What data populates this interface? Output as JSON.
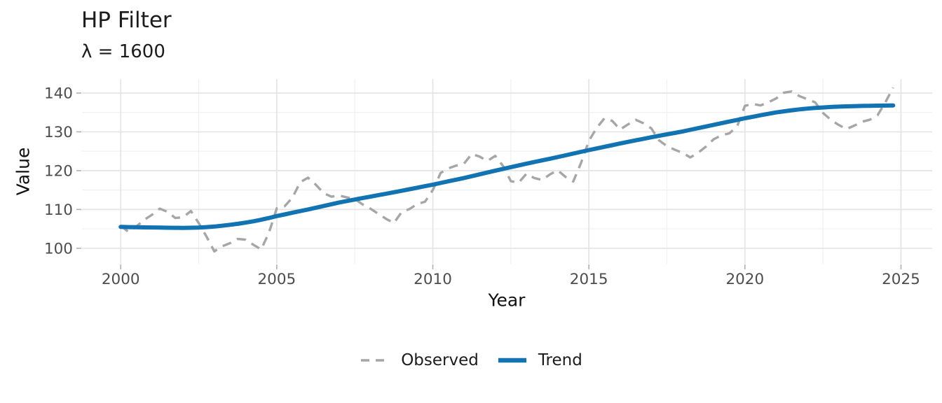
{
  "chart_data": {
    "type": "line",
    "title": "HP Filter",
    "subtitle": "λ = 1600",
    "xlabel": "Year",
    "ylabel": "Value",
    "grid": true,
    "legend_position": "bottom",
    "x_domain": [
      1998.76,
      2026.0
    ],
    "y_domain": [
      96.0,
      143.6
    ],
    "x_ticks": [
      2000,
      2005,
      2010,
      2015,
      2020,
      2025
    ],
    "x_minor_ticks": [
      2002.5,
      2007.5,
      2012.5,
      2017.5,
      2022.5
    ],
    "y_ticks": [
      100,
      110,
      120,
      130,
      140
    ],
    "y_minor_ticks": [
      105,
      115,
      125,
      135
    ],
    "x": [
      2000.0,
      2000.25,
      2000.5,
      2000.75,
      2001.0,
      2001.25,
      2001.5,
      2001.75,
      2002.0,
      2002.25,
      2002.5,
      2002.75,
      2003.0,
      2003.25,
      2003.5,
      2003.75,
      2004.0,
      2004.25,
      2004.5,
      2004.75,
      2005.0,
      2005.25,
      2005.5,
      2005.75,
      2006.0,
      2006.25,
      2006.5,
      2006.75,
      2007.0,
      2007.25,
      2007.5,
      2007.75,
      2008.0,
      2008.25,
      2008.5,
      2008.75,
      2009.0,
      2009.25,
      2009.5,
      2009.75,
      2010.0,
      2010.25,
      2010.5,
      2010.75,
      2011.0,
      2011.25,
      2011.5,
      2011.75,
      2012.0,
      2012.25,
      2012.5,
      2012.75,
      2013.0,
      2013.25,
      2013.5,
      2013.75,
      2014.0,
      2014.25,
      2014.5,
      2014.75,
      2015.0,
      2015.25,
      2015.5,
      2015.75,
      2016.0,
      2016.25,
      2016.5,
      2016.75,
      2017.0,
      2017.25,
      2017.5,
      2017.75,
      2018.0,
      2018.25,
      2018.5,
      2018.75,
      2019.0,
      2019.25,
      2019.5,
      2019.75,
      2020.0,
      2020.25,
      2020.5,
      2020.75,
      2021.0,
      2021.25,
      2021.5,
      2021.75,
      2022.0,
      2022.25,
      2022.5,
      2022.75,
      2023.0,
      2023.25,
      2023.5,
      2023.75,
      2024.0,
      2024.25,
      2024.5,
      2024.75
    ],
    "series": [
      {
        "name": "Observed",
        "style": "dashed",
        "color": "#a6a6a6",
        "values": [
          105.8,
          104.2,
          105.6,
          107.3,
          108.6,
          110.2,
          109.4,
          107.8,
          108.0,
          109.6,
          106.5,
          103.0,
          99.2,
          100.5,
          101.3,
          102.4,
          102.2,
          100.9,
          99.7,
          104.0,
          110.3,
          110.8,
          113.0,
          117.0,
          118.2,
          116.4,
          114.2,
          113.3,
          113.6,
          113.1,
          112.7,
          111.3,
          110.2,
          108.9,
          107.6,
          106.5,
          109.3,
          110.1,
          111.4,
          112.0,
          115.0,
          119.4,
          120.6,
          121.3,
          121.8,
          124.3,
          123.6,
          122.5,
          123.8,
          121.2,
          117.3,
          116.9,
          119.2,
          118.1,
          117.6,
          119.0,
          120.1,
          118.4,
          117.2,
          122.0,
          127.7,
          131.0,
          133.5,
          132.8,
          130.6,
          131.9,
          133.1,
          132.2,
          130.9,
          127.8,
          126.3,
          125.4,
          124.6,
          123.4,
          124.6,
          126.2,
          128.1,
          129.1,
          129.6,
          131.4,
          136.7,
          137.2,
          136.8,
          137.6,
          138.6,
          140.1,
          140.4,
          139.2,
          138.4,
          137.6,
          134.9,
          133.1,
          131.8,
          130.7,
          131.6,
          132.6,
          133.1,
          134.3,
          137.6,
          141.4
        ]
      },
      {
        "name": "Trend",
        "style": "solid",
        "color": "#1173b2",
        "values": [
          105.5,
          105.45,
          105.41,
          105.38,
          105.35,
          105.32,
          105.29,
          105.27,
          105.25,
          105.28,
          105.34,
          105.45,
          105.6,
          105.8,
          106.04,
          106.3,
          106.6,
          106.95,
          107.35,
          107.8,
          108.3,
          108.72,
          109.15,
          109.57,
          110.0,
          110.45,
          110.9,
          111.35,
          111.8,
          112.18,
          112.55,
          112.93,
          113.3,
          113.68,
          114.05,
          114.43,
          114.8,
          115.2,
          115.6,
          116.0,
          116.4,
          116.82,
          117.25,
          117.67,
          118.1,
          118.57,
          119.05,
          119.52,
          120.0,
          120.45,
          120.9,
          121.35,
          121.8,
          122.22,
          122.65,
          123.07,
          123.5,
          123.95,
          124.4,
          124.85,
          125.3,
          125.72,
          126.15,
          126.57,
          127.0,
          127.4,
          127.8,
          128.2,
          128.6,
          128.97,
          129.35,
          129.72,
          130.1,
          130.52,
          130.95,
          131.37,
          131.8,
          132.22,
          132.65,
          133.07,
          133.5,
          133.89,
          134.27,
          134.64,
          135.0,
          135.29,
          135.56,
          135.79,
          136.0,
          136.15,
          136.28,
          136.4,
          136.5,
          136.57,
          136.63,
          136.67,
          136.7,
          136.74,
          136.77,
          136.8
        ]
      }
    ]
  }
}
